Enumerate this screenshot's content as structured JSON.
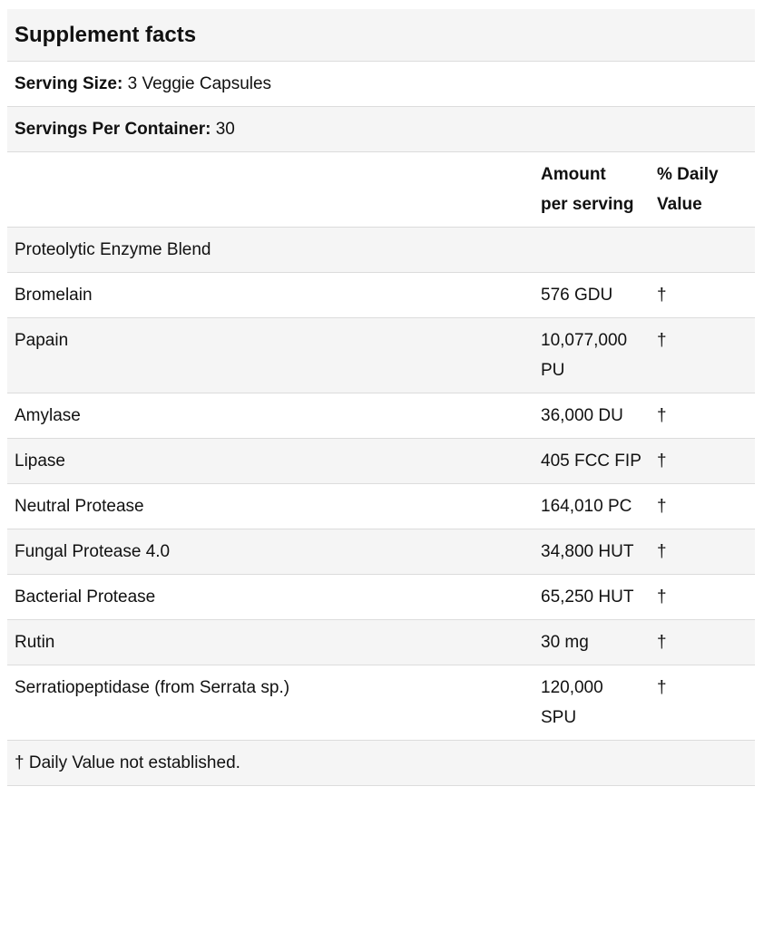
{
  "title": "Supplement facts",
  "serving_size": {
    "label": "Serving Size:",
    "value": "3 Veggie Capsules"
  },
  "servings_per_container": {
    "label": "Servings Per Container:",
    "value": "30"
  },
  "columns": {
    "amount_line1": "Amount",
    "amount_line2": "per serving",
    "dv_line1": "% Daily",
    "dv_line2": "Value"
  },
  "blend": "Proteolytic Enzyme Blend",
  "rows": [
    {
      "name": "Bromelain",
      "amount": "576 GDU",
      "dv": "†"
    },
    {
      "name": "Papain",
      "amount": "10,077,000 PU",
      "dv": "†"
    },
    {
      "name": "Amylase",
      "amount": "36,000 DU",
      "dv": "†"
    },
    {
      "name": "Lipase",
      "amount": "405 FCC FIP",
      "dv": "†"
    },
    {
      "name": "Neutral Protease",
      "amount": "164,010 PC",
      "dv": "†"
    },
    {
      "name": "Fungal Protease 4.0",
      "amount": "34,800 HUT",
      "dv": "†"
    },
    {
      "name": "Bacterial Protease",
      "amount": "65,250 HUT",
      "dv": "†"
    },
    {
      "name": "Rutin",
      "amount": "30 mg",
      "dv": "†"
    },
    {
      "name": "Serratiopeptidase (from Serrata sp.)",
      "amount": "120,000 SPU",
      "dv": "†"
    }
  ],
  "footnote": "† Daily Value not established."
}
